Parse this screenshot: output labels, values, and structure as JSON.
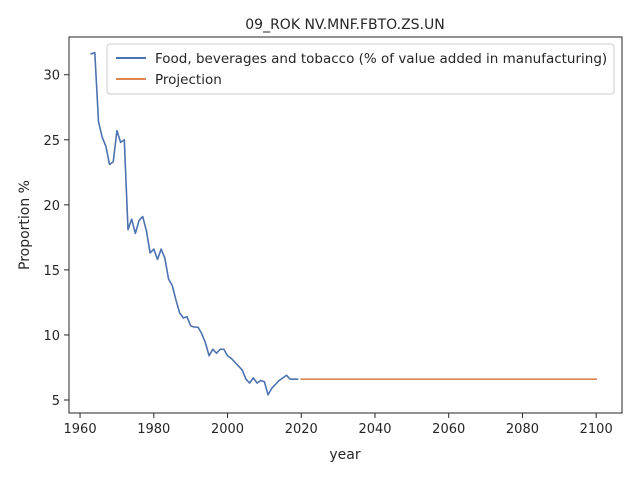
{
  "chart_data": {
    "type": "line",
    "title": "09_ROK NV.MNF.FBTO.ZS.UN",
    "xlabel": "year",
    "ylabel": "Proportion %",
    "xlim": [
      1957,
      2107
    ],
    "ylim": [
      4.0,
      32.9
    ],
    "x_ticks": [
      1960,
      1980,
      2000,
      2020,
      2040,
      2060,
      2080,
      2100
    ],
    "y_ticks": [
      5,
      10,
      15,
      20,
      25,
      30
    ],
    "grid": false,
    "legend_position": "upper-right",
    "series": [
      {
        "name": "Food, beverages and tobacco (% of value added in manufacturing)",
        "color": "#4c72b0",
        "x": [
          1963,
          1964,
          1965,
          1966,
          1967,
          1968,
          1969,
          1970,
          1971,
          1972,
          1973,
          1974,
          1975,
          1976,
          1977,
          1978,
          1979,
          1980,
          1981,
          1982,
          1983,
          1984,
          1985,
          1986,
          1987,
          1988,
          1989,
          1990,
          1991,
          1992,
          1993,
          1994,
          1995,
          1996,
          1997,
          1998,
          1999,
          2000,
          2001,
          2002,
          2003,
          2004,
          2005,
          2006,
          2007,
          2008,
          2009,
          2010,
          2011,
          2012,
          2013,
          2014,
          2015,
          2016,
          2017,
          2018,
          2019
        ],
        "y": [
          31.6,
          31.7,
          26.4,
          25.2,
          24.5,
          23.1,
          23.3,
          25.7,
          24.8,
          25.0,
          18.1,
          18.9,
          17.8,
          18.8,
          19.1,
          18.0,
          16.3,
          16.6,
          15.8,
          16.6,
          15.9,
          14.3,
          13.8,
          12.7,
          11.7,
          11.3,
          11.4,
          10.7,
          10.6,
          10.6,
          10.1,
          9.4,
          8.4,
          8.9,
          8.6,
          8.9,
          8.9,
          8.4,
          8.2,
          7.9,
          7.6,
          7.3,
          6.6,
          6.3,
          6.7,
          6.3,
          6.5,
          6.4,
          5.4,
          5.9,
          6.2,
          6.5,
          6.7,
          6.9,
          6.6,
          6.6,
          6.6
        ]
      },
      {
        "name": "Projection",
        "color": "#dd8452",
        "x": [
          2020,
          2100
        ],
        "y": [
          6.6,
          6.6
        ]
      }
    ]
  }
}
